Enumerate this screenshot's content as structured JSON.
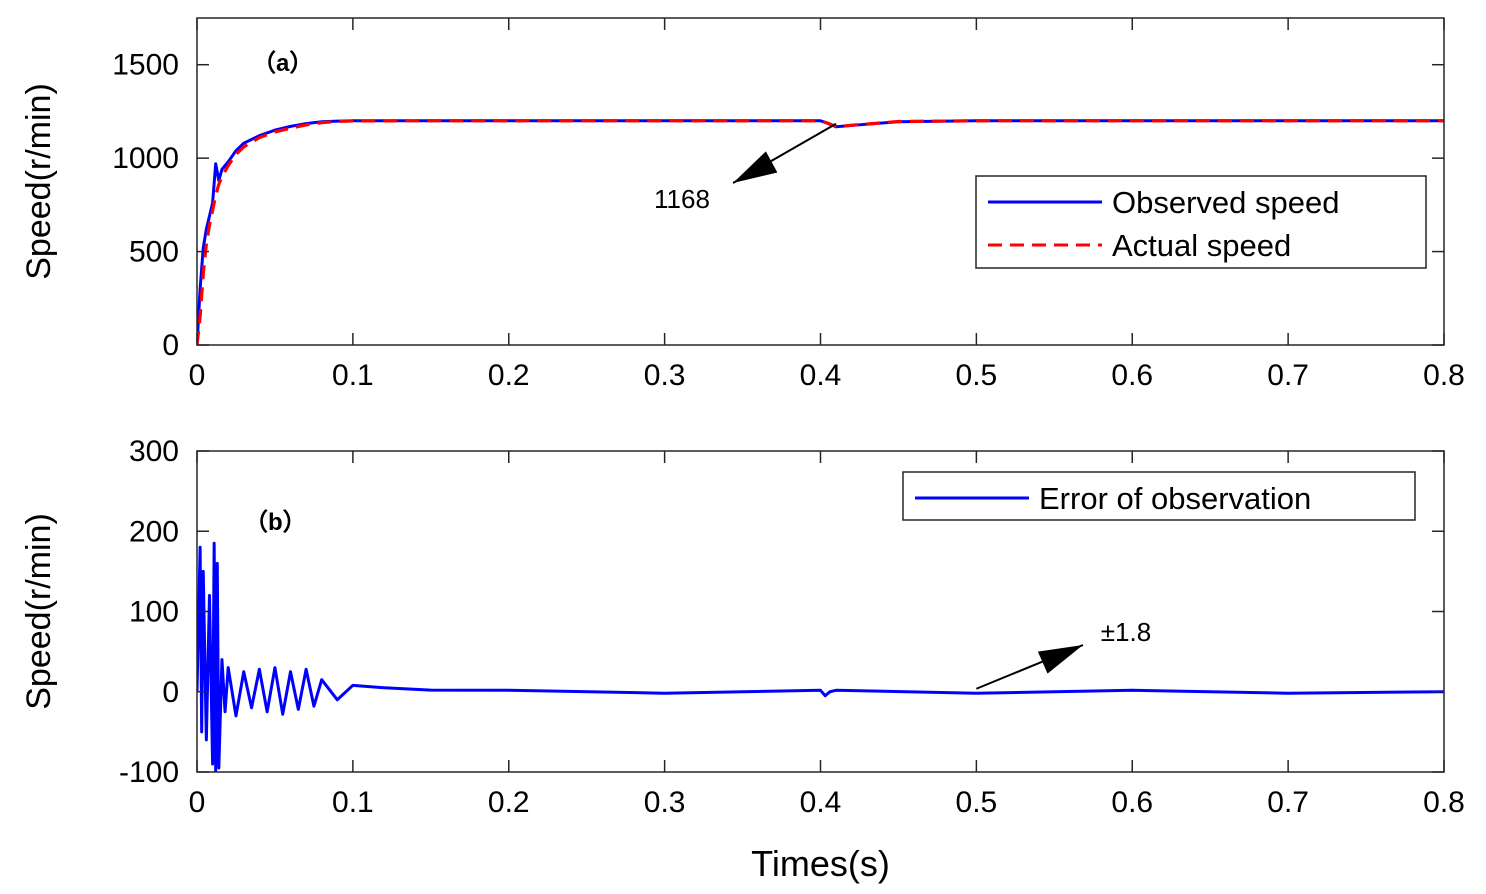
{
  "colors": {
    "blue": "#0000ff",
    "red": "#ff0000",
    "axis": "#262626"
  },
  "chart_data": [
    {
      "type": "line",
      "panel_label": "（a）",
      "ylabel": "Speed(r/min)",
      "xlabel": "",
      "xlim": [
        0,
        0.8
      ],
      "ylim": [
        0,
        1750
      ],
      "xticks": [
        0,
        0.1,
        0.2,
        0.3,
        0.4,
        0.5,
        0.6,
        0.7,
        0.8
      ],
      "xtick_labels": [
        "0",
        "0.1",
        "0.2",
        "0.3",
        "0.4",
        "0.5",
        "0.6",
        "0.7",
        "0.8"
      ],
      "yticks": [
        0,
        500,
        1000,
        1500
      ],
      "ytick_labels": [
        "0",
        "500",
        "1000",
        "1500"
      ],
      "legend_position": "right",
      "series": [
        {
          "name": "Observed speed",
          "style": "solid",
          "color": "#0000ff",
          "x": [
            0,
            0.002,
            0.004,
            0.006,
            0.008,
            0.01,
            0.012,
            0.014,
            0.016,
            0.02,
            0.025,
            0.03,
            0.04,
            0.05,
            0.06,
            0.07,
            0.08,
            0.09,
            0.1,
            0.15,
            0.2,
            0.3,
            0.4,
            0.405,
            0.41,
            0.42,
            0.45,
            0.5,
            0.6,
            0.7,
            0.8
          ],
          "values": [
            0,
            300,
            520,
            620,
            690,
            760,
            970,
            880,
            940,
            980,
            1040,
            1080,
            1120,
            1150,
            1170,
            1185,
            1195,
            1198,
            1200,
            1200,
            1200,
            1200,
            1200,
            1185,
            1168,
            1175,
            1195,
            1200,
            1200,
            1200,
            1200
          ]
        },
        {
          "name": "Actual speed",
          "style": "dashed",
          "color": "#ff0000",
          "x": [
            0,
            0.002,
            0.004,
            0.006,
            0.008,
            0.01,
            0.012,
            0.014,
            0.016,
            0.02,
            0.025,
            0.03,
            0.04,
            0.05,
            0.06,
            0.07,
            0.08,
            0.09,
            0.1,
            0.15,
            0.2,
            0.3,
            0.4,
            0.405,
            0.41,
            0.42,
            0.45,
            0.5,
            0.6,
            0.7,
            0.8
          ],
          "values": [
            0,
            150,
            380,
            540,
            640,
            720,
            800,
            860,
            900,
            960,
            1020,
            1060,
            1110,
            1140,
            1160,
            1178,
            1190,
            1196,
            1199,
            1200,
            1200,
            1200,
            1200,
            1186,
            1168,
            1176,
            1196,
            1200,
            1200,
            1200,
            1200
          ]
        }
      ],
      "annotations": [
        {
          "text": "1168",
          "point_x": 0.41,
          "point_y": 1168,
          "text_x": 0.285,
          "text_y": 840
        }
      ]
    },
    {
      "type": "line",
      "panel_label": "（b）",
      "ylabel": "Speed(r/min)",
      "xlabel": "Times(s)",
      "xlim": [
        0,
        0.8
      ],
      "ylim": [
        -100,
        300
      ],
      "xticks": [
        0,
        0.1,
        0.2,
        0.3,
        0.4,
        0.5,
        0.6,
        0.7,
        0.8
      ],
      "xtick_labels": [
        "0",
        "0.1",
        "0.2",
        "0.3",
        "0.4",
        "0.5",
        "0.6",
        "0.7",
        "0.8"
      ],
      "yticks": [
        -100,
        0,
        100,
        200,
        300
      ],
      "ytick_labels": [
        "-100",
        "0",
        "100",
        "200",
        "300"
      ],
      "legend_position": "top-right",
      "series": [
        {
          "name": "Error of observation",
          "style": "solid",
          "color": "#0000ff",
          "x": [
            0,
            0.002,
            0.003,
            0.004,
            0.006,
            0.008,
            0.01,
            0.011,
            0.012,
            0.013,
            0.014,
            0.016,
            0.018,
            0.02,
            0.025,
            0.03,
            0.035,
            0.04,
            0.045,
            0.05,
            0.055,
            0.06,
            0.065,
            0.07,
            0.075,
            0.08,
            0.09,
            0.1,
            0.12,
            0.15,
            0.2,
            0.3,
            0.4,
            0.403,
            0.406,
            0.41,
            0.5,
            0.6,
            0.7,
            0.8
          ],
          "values": [
            0,
            180,
            -50,
            150,
            -60,
            120,
            -90,
            185,
            -100,
            160,
            -95,
            40,
            -25,
            30,
            -30,
            25,
            -20,
            28,
            -25,
            30,
            -28,
            25,
            -22,
            28,
            -18,
            15,
            -10,
            8,
            5,
            2,
            1.8,
            -1.8,
            1.8,
            -5,
            0,
            1.8,
            -1.8,
            1.8,
            -1.8,
            0
          ]
        }
      ],
      "annotations": [
        {
          "text": "±1.8",
          "point_x": 0.5,
          "point_y": 0,
          "text_x": 0.56,
          "text_y": 55
        }
      ]
    }
  ]
}
